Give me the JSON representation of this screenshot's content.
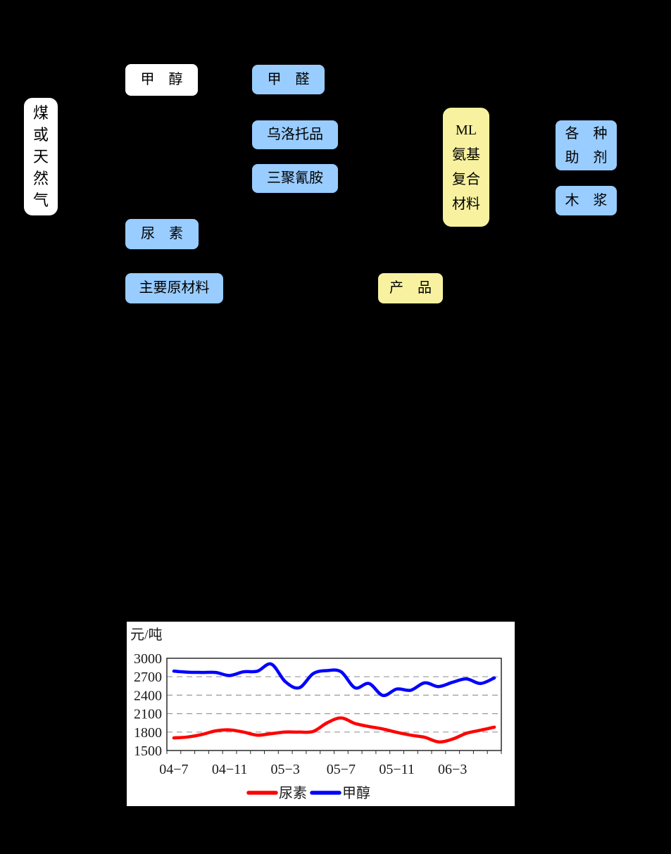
{
  "page": {
    "background": "#000000"
  },
  "diagram": {
    "boxes": [
      {
        "id": "coal-or-gas",
        "lines": [
          "煤",
          "或",
          "天",
          "然",
          "气"
        ],
        "fill": "#FFFFFF"
      },
      {
        "id": "methanol",
        "text": "甲　醇",
        "fill": "#FFFFFF"
      },
      {
        "id": "formaldehyde",
        "text": "甲　醛",
        "fill": "#99CCFF"
      },
      {
        "id": "urotropine",
        "text": "乌洛托品",
        "fill": "#99CCFF"
      },
      {
        "id": "melamine",
        "text": "三聚氰胺",
        "fill": "#99CCFF"
      },
      {
        "id": "ml-amino-compound",
        "lines": [
          "ML",
          "氨基",
          "复合",
          "材料"
        ],
        "fill": "#F8F2A0"
      },
      {
        "id": "various-additives",
        "lines": [
          "各　种",
          "助　剂"
        ],
        "fill": "#99CCFF"
      },
      {
        "id": "wood-pulp",
        "text": "木　浆",
        "fill": "#99CCFF"
      },
      {
        "id": "urea",
        "text": "尿　素",
        "fill": "#99CCFF"
      },
      {
        "id": "main-raw-materials",
        "text": "主要原材料",
        "fill": "#99CCFF"
      },
      {
        "id": "products",
        "text": "产　品",
        "fill": "#F8F2A0"
      }
    ]
  },
  "chart_data": {
    "type": "line",
    "y_unit_label": "元/吨",
    "categories": [
      "04-7",
      "04-8",
      "04-9",
      "04-10",
      "04-11",
      "04-12",
      "05-1",
      "05-2",
      "05-3",
      "05-4",
      "05-5",
      "05-6",
      "05-7",
      "05-8",
      "05-9",
      "05-10",
      "05-11",
      "05-12",
      "06-1",
      "06-2",
      "06-3",
      "06-4",
      "06-5",
      "06-6"
    ],
    "series": [
      {
        "name": "尿素",
        "color": "#FF0000",
        "values": [
          1705,
          1720,
          1760,
          1820,
          1835,
          1800,
          1750,
          1775,
          1800,
          1800,
          1810,
          1950,
          2030,
          1940,
          1890,
          1850,
          1795,
          1750,
          1715,
          1640,
          1685,
          1780,
          1830,
          1880
        ]
      },
      {
        "name": "甲醇",
        "color": "#0000FF",
        "values": [
          2790,
          2775,
          2770,
          2770,
          2720,
          2780,
          2790,
          2905,
          2620,
          2520,
          2750,
          2800,
          2780,
          2520,
          2590,
          2395,
          2500,
          2480,
          2600,
          2540,
          2610,
          2665,
          2590,
          2680
        ]
      }
    ],
    "ylim": [
      1500,
      3000
    ],
    "yticks": [
      1500,
      1800,
      2100,
      2400,
      2700,
      3000
    ],
    "xticks": [
      {
        "index": 0,
        "label": "04−7"
      },
      {
        "index": 4,
        "label": "04−11"
      },
      {
        "index": 8,
        "label": "05−3"
      },
      {
        "index": 12,
        "label": "05−7"
      },
      {
        "index": 16,
        "label": "05−11"
      },
      {
        "index": 20,
        "label": "06−3"
      }
    ],
    "grid": "horizontal-dashed",
    "legend_position": "bottom",
    "plot_background": "#FFFFFF"
  }
}
